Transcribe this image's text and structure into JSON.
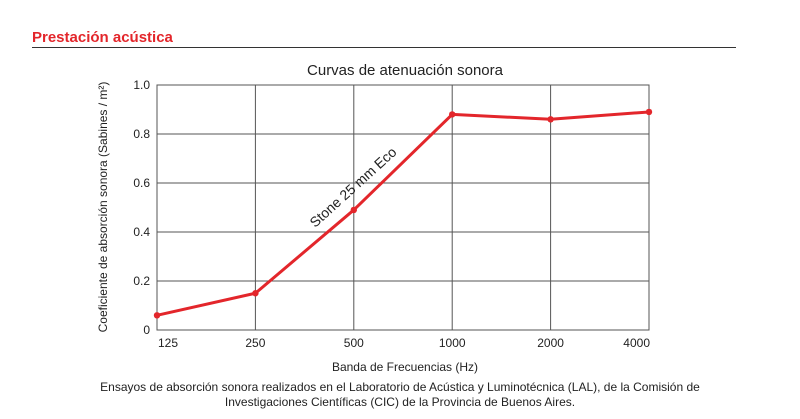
{
  "header": {
    "section_title": "Prestación acústica",
    "accent_color": "#e3262b"
  },
  "chart_data": {
    "type": "line",
    "title": "Curvas de atenuación sonora",
    "xlabel": "Banda de Frecuencias (Hz)",
    "ylabel": "Coeficiente de absorción sonora (Sabines / m²)",
    "categories": [
      "125",
      "250",
      "500",
      "1000",
      "2000",
      "4000"
    ],
    "yticks": [
      "0",
      "0.2",
      "0.4",
      "0.6",
      "0.8",
      "1.0"
    ],
    "ylim": [
      0,
      1.0
    ],
    "grid": true,
    "series": [
      {
        "name": "Stone 25 mm Eco",
        "values": [
          0.06,
          0.15,
          0.49,
          0.88,
          0.86,
          0.89
        ],
        "color": "#e3262b"
      }
    ]
  },
  "footer": {
    "caption_line1": "Ensayos de absorción sonora realizados en el Laboratorio de Acústica y Luminotécnica (LAL), de la Comisión de",
    "caption_line2": "Investigaciones Científicas (CIC) de la Provincia de Buenos Aires."
  }
}
